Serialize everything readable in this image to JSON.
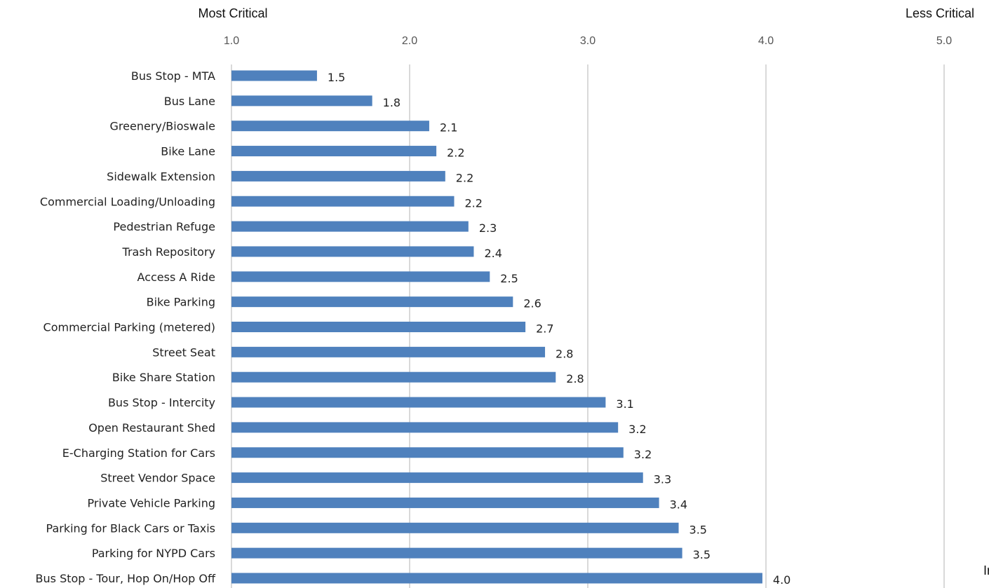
{
  "chart_data": {
    "type": "bar",
    "orientation": "horizontal",
    "title": "",
    "left_annotation": "Most Critical",
    "right_annotation": "Less Critical",
    "corner_fragment": "Ir",
    "xlim": [
      1.0,
      5.0
    ],
    "x_ticks": [
      "1.0",
      "2.0",
      "3.0",
      "4.0",
      "5.0"
    ],
    "grid": "vertical",
    "categories": [
      "Bus Stop - MTA",
      "Bus Lane",
      "Greenery/Bioswale",
      "Bike Lane",
      "Sidewalk Extension",
      "Commercial Loading/Unloading",
      "Pedestrian Refuge",
      "Trash Repository",
      "Access A Ride",
      "Bike Parking",
      "Commercial Parking (metered)",
      "Street Seat",
      "Bike Share Station",
      "Bus Stop - Intercity",
      "Open Restaurant Shed",
      "E-Charging Station for Cars",
      "Street Vendor Space",
      "Private Vehicle Parking",
      "Parking for Black Cars or Taxis",
      "Parking for NYPD Cars",
      "Bus Stop - Tour, Hop On/Hop Off"
    ],
    "values": [
      1.48,
      1.79,
      2.11,
      2.15,
      2.2,
      2.25,
      2.33,
      2.36,
      2.45,
      2.58,
      2.65,
      2.76,
      2.82,
      3.1,
      3.17,
      3.2,
      3.31,
      3.4,
      3.51,
      3.53,
      3.98
    ],
    "value_labels": [
      "1.5",
      "1.8",
      "2.1",
      "2.2",
      "2.2",
      "2.2",
      "2.3",
      "2.4",
      "2.5",
      "2.6",
      "2.7",
      "2.8",
      "2.8",
      "3.1",
      "3.2",
      "3.2",
      "3.3",
      "3.4",
      "3.5",
      "3.5",
      "4.0"
    ],
    "bar_color": "#4f81bd",
    "grid_color": "#d9d9d9"
  }
}
